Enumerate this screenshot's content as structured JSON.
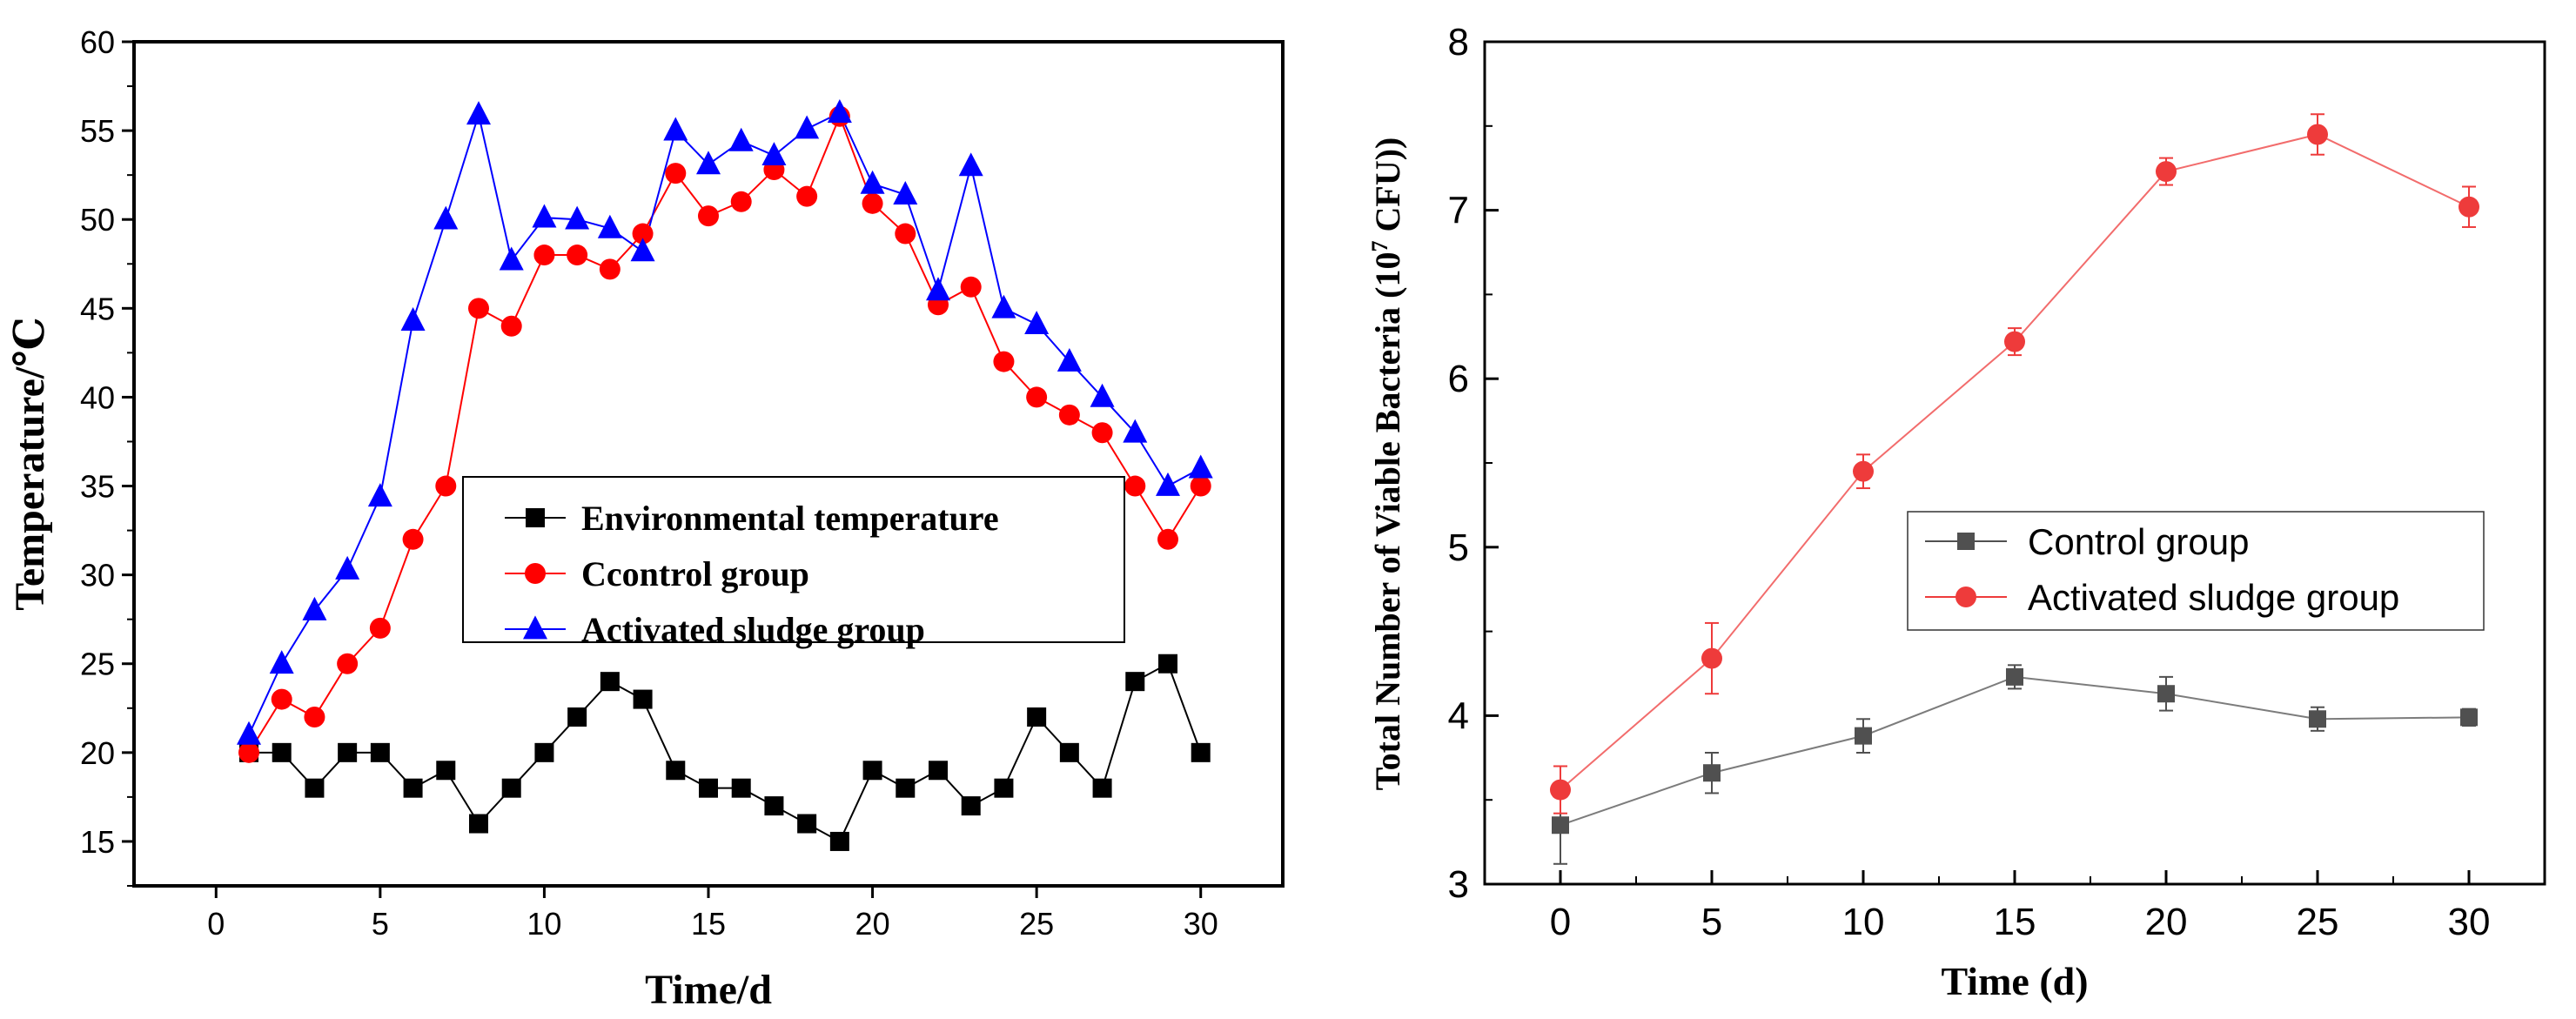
{
  "chart_data": [
    {
      "type": "line",
      "title": "",
      "xlabel": "Time/d",
      "ylabel": "Temperature/℃",
      "xlim": [
        -2.5,
        32.5
      ],
      "ylim": [
        12.5,
        60
      ],
      "xticks": [
        0,
        5,
        10,
        15,
        20,
        25,
        30
      ],
      "xtick_labels": [
        "0",
        "5",
        "10",
        "15",
        "20",
        "25",
        "30"
      ],
      "yticks": [
        15,
        20,
        25,
        30,
        35,
        40,
        45,
        50,
        55,
        60
      ],
      "ytick_labels": [
        "15",
        "20",
        "25",
        "30",
        "35",
        "40",
        "45",
        "50",
        "55",
        "60"
      ],
      "legend_position": "center",
      "x": [
        1,
        2,
        3,
        4,
        5,
        6,
        7,
        8,
        9,
        10,
        11,
        12,
        13,
        14,
        15,
        16,
        17,
        18,
        19,
        20,
        21,
        22,
        23,
        24,
        25,
        26,
        27,
        28,
        29,
        30
      ],
      "series": [
        {
          "name": "Environmental temperature",
          "color": "#000000",
          "marker": "square",
          "values": [
            20,
            20,
            18,
            20,
            20,
            18,
            19,
            16,
            18,
            20,
            22,
            24,
            23,
            19,
            18,
            18,
            17,
            16,
            15,
            19,
            18,
            19,
            17,
            18,
            22,
            20,
            18,
            24,
            25,
            20
          ]
        },
        {
          "name": "Ccontrol group",
          "color": "#ff0000",
          "marker": "circle",
          "values": [
            20,
            23,
            22,
            25,
            27,
            32,
            35,
            45,
            44,
            48,
            48,
            47.2,
            49.2,
            52.6,
            50.2,
            51,
            52.8,
            51.3,
            55.8,
            50.9,
            49.2,
            45.2,
            46.2,
            42,
            40,
            39,
            38,
            35,
            32,
            35
          ]
        },
        {
          "name": "Activated sludge group",
          "color": "#0000ff",
          "marker": "triangle",
          "values": [
            21,
            25,
            28,
            30.3,
            34.4,
            44.3,
            50,
            55.9,
            47.7,
            50.1,
            50,
            49.5,
            48.2,
            55,
            53.1,
            54.4,
            53.6,
            55.1,
            56,
            52,
            51.4,
            46,
            53,
            45,
            44.1,
            42,
            40,
            38,
            35,
            36
          ]
        }
      ]
    },
    {
      "type": "line",
      "title": "",
      "xlabel": "Time (d)",
      "ylabel": "Total Number of Viable Bacteria (10",
      "ylabel_sup": "7",
      "ylabel_tail": " CFU))",
      "xlim": [
        -2.5,
        32.5
      ],
      "ylim": [
        3,
        8
      ],
      "xticks": [
        0,
        5,
        10,
        15,
        20,
        25,
        30
      ],
      "xtick_labels": [
        "0",
        "5",
        "10",
        "15",
        "20",
        "25",
        "30"
      ],
      "yticks": [
        3,
        4,
        5,
        6,
        7,
        8
      ],
      "ytick_labels": [
        "3",
        "4",
        "5",
        "6",
        "7",
        "8"
      ],
      "legend_position": "center-right",
      "x": [
        0,
        5,
        10,
        15,
        20,
        25,
        30
      ],
      "series": [
        {
          "name": "Control group",
          "color": "#505050",
          "marker": "square",
          "values": [
            3.35,
            3.66,
            3.88,
            4.23,
            4.13,
            3.98,
            3.99
          ],
          "errors": [
            0.23,
            0.12,
            0.1,
            0.07,
            0.1,
            0.07,
            0.05
          ]
        },
        {
          "name": "Activated sludge group",
          "color": "#ee3b3b",
          "marker": "circle",
          "values": [
            3.56,
            4.34,
            5.45,
            6.22,
            7.23,
            7.45,
            7.02
          ],
          "errors": [
            0.14,
            0.21,
            0.1,
            0.08,
            0.08,
            0.12,
            0.12
          ]
        }
      ]
    }
  ]
}
